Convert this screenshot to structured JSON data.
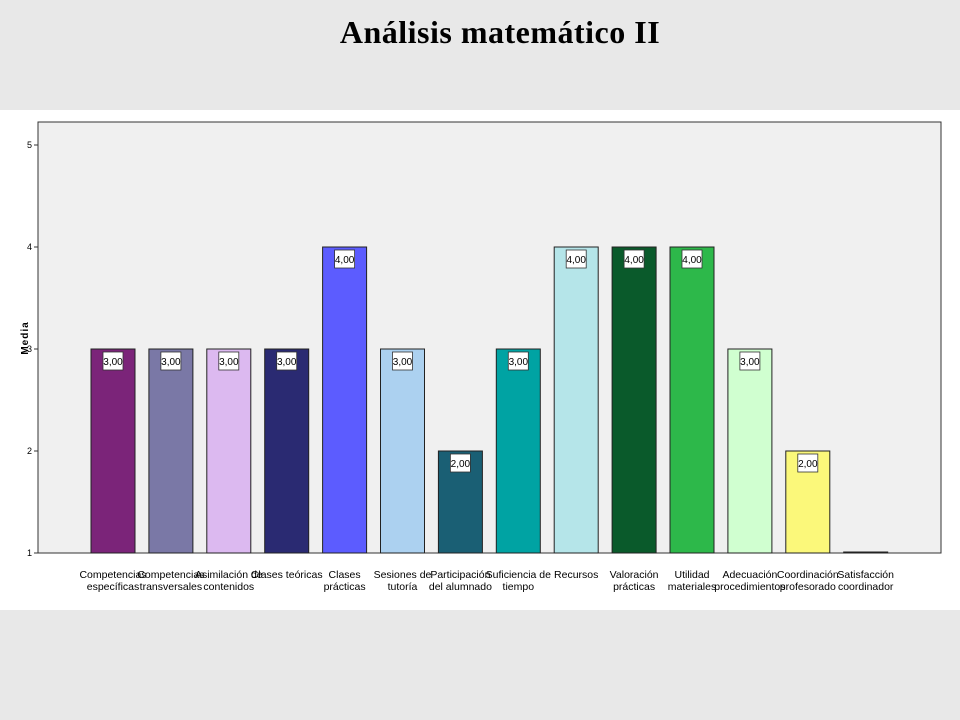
{
  "page": {
    "title": "Análisis matemático II"
  },
  "chart_data": {
    "type": "bar",
    "ylabel": "Media",
    "xlabel": "",
    "ylim": [
      1,
      5
    ],
    "yticks": [
      "1",
      "2",
      "3",
      "4",
      "5"
    ],
    "grid": false,
    "legend": "none",
    "categories": [
      [
        "Competencias",
        "específicas"
      ],
      [
        "Competencias",
        "transversales"
      ],
      [
        "Asimilación de",
        "contenidos"
      ],
      [
        "Clases teóricas"
      ],
      [
        "Clases",
        "prácticas"
      ],
      [
        "Sesiones de",
        "tutoría"
      ],
      [
        "Participación",
        "del alumnado"
      ],
      [
        "Suficiencia de",
        "tiempo"
      ],
      [
        "Recursos"
      ],
      [
        "Valoración",
        "prácticas"
      ],
      [
        "Utilidad",
        "materiales"
      ],
      [
        "Adecuación",
        "procedimientos"
      ],
      [
        "Coordinación",
        "profesorado"
      ],
      [
        "Satisfacción",
        "coordinador"
      ]
    ],
    "values": [
      3,
      3,
      3,
      3,
      4,
      3,
      2,
      3,
      4,
      4,
      4,
      3,
      2,
      1
    ],
    "value_labels": [
      "3,00",
      "3,00",
      "3,00",
      "3,00",
      "4,00",
      "3,00",
      "2,00",
      "3,00",
      "4,00",
      "4,00",
      "4,00",
      "3,00",
      "2,00",
      ""
    ],
    "colors": [
      "#7b2479",
      "#7a78a6",
      "#dcb9f0",
      "#2a2a72",
      "#5c5cff",
      "#acd1f0",
      "#1a5f74",
      "#00a3a3",
      "#b5e5e9",
      "#0a5a2b",
      "#2db84a",
      "#d0ffd0",
      "#fbf87a",
      "#ffffff"
    ]
  }
}
